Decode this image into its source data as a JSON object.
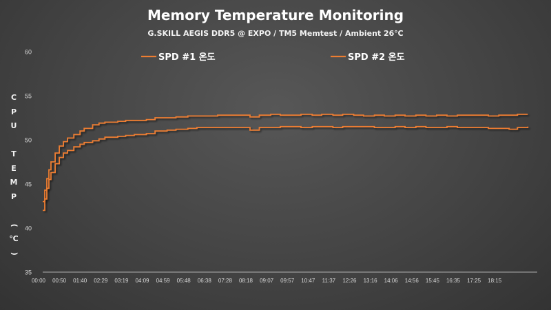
{
  "chart_data": {
    "type": "line",
    "title": "Memory Temperature Monitoring",
    "subtitle": "G.SKILL AEGIS DDR5 @ EXPO / TM5 Memtest / Ambient 26℃",
    "ylabel": "CPU TEMP (℃)",
    "xlabel": "",
    "ylim": [
      35,
      60
    ],
    "yticks": [
      "35",
      "40",
      "45",
      "50",
      "55",
      "60"
    ],
    "xticks": [
      "00:00",
      "00:50",
      "01:40",
      "02:29",
      "03:19",
      "04:09",
      "04:59",
      "05:48",
      "06:38",
      "07:28",
      "08:18",
      "09:07",
      "09:57",
      "10:47",
      "11:37",
      "12:26",
      "13:16",
      "14:06",
      "14:56",
      "15:45",
      "16:35",
      "17:25",
      "18:15"
    ],
    "grid": false,
    "legend_position": "top",
    "colors": {
      "series": "#ED7D31",
      "background": "#444444",
      "axis": "#d9d9d9"
    },
    "series": [
      {
        "name": "SPD #1 온도",
        "x": [
          "00:00",
          "00:05",
          "00:10",
          "00:15",
          "00:20",
          "00:30",
          "00:40",
          "00:50",
          "01:00",
          "01:15",
          "01:30",
          "01:40",
          "02:00",
          "02:15",
          "02:29",
          "03:00",
          "03:19",
          "03:40",
          "04:09",
          "04:30",
          "04:59",
          "05:20",
          "05:48",
          "06:10",
          "06:38",
          "07:00",
          "07:28",
          "07:50",
          "08:18",
          "08:40",
          "09:07",
          "09:30",
          "09:57",
          "10:20",
          "10:47",
          "11:10",
          "11:37",
          "12:00",
          "12:26",
          "12:50",
          "13:16",
          "13:40",
          "14:06",
          "14:30",
          "14:56",
          "15:20",
          "15:45",
          "16:10",
          "16:35",
          "17:00",
          "17:25",
          "17:50",
          "18:15",
          "18:40",
          "19:00",
          "19:25"
        ],
        "values": [
          43.0,
          44.3,
          45.6,
          46.6,
          47.5,
          48.5,
          49.3,
          49.8,
          50.2,
          50.6,
          51.0,
          51.3,
          51.7,
          51.9,
          52.0,
          52.1,
          52.2,
          52.2,
          52.3,
          52.5,
          52.5,
          52.6,
          52.7,
          52.7,
          52.7,
          52.8,
          52.8,
          52.8,
          52.6,
          52.8,
          52.9,
          52.8,
          52.8,
          52.9,
          52.8,
          52.9,
          52.8,
          52.9,
          52.8,
          52.7,
          52.8,
          52.7,
          52.8,
          52.7,
          52.8,
          52.7,
          52.8,
          52.7,
          52.8,
          52.8,
          52.8,
          52.7,
          52.8,
          52.8,
          52.9,
          52.9
        ]
      },
      {
        "name": "SPD #2 온도",
        "x": [
          "00:00",
          "00:05",
          "00:10",
          "00:15",
          "00:20",
          "00:30",
          "00:40",
          "00:50",
          "01:00",
          "01:15",
          "01:30",
          "01:40",
          "02:00",
          "02:15",
          "02:29",
          "03:00",
          "03:19",
          "03:40",
          "04:09",
          "04:30",
          "04:59",
          "05:20",
          "05:48",
          "06:10",
          "06:38",
          "07:00",
          "07:28",
          "07:50",
          "08:18",
          "08:40",
          "09:07",
          "09:30",
          "09:57",
          "10:20",
          "10:47",
          "11:10",
          "11:37",
          "12:00",
          "12:26",
          "12:50",
          "13:16",
          "13:40",
          "14:06",
          "14:30",
          "14:56",
          "15:20",
          "15:45",
          "16:10",
          "16:35",
          "17:00",
          "17:25",
          "17:50",
          "18:15",
          "18:40",
          "19:00",
          "19:25"
        ],
        "values": [
          42.0,
          43.3,
          44.5,
          45.5,
          46.3,
          47.3,
          48.0,
          48.5,
          48.8,
          49.2,
          49.5,
          49.7,
          49.9,
          50.1,
          50.3,
          50.4,
          50.5,
          50.6,
          50.7,
          51.0,
          51.1,
          51.2,
          51.3,
          51.4,
          51.4,
          51.4,
          51.4,
          51.4,
          51.1,
          51.4,
          51.4,
          51.5,
          51.5,
          51.4,
          51.5,
          51.5,
          51.4,
          51.5,
          51.5,
          51.5,
          51.4,
          51.4,
          51.5,
          51.4,
          51.5,
          51.4,
          51.4,
          51.5,
          51.4,
          51.4,
          51.4,
          51.3,
          51.3,
          51.2,
          51.4,
          51.5
        ]
      }
    ]
  }
}
